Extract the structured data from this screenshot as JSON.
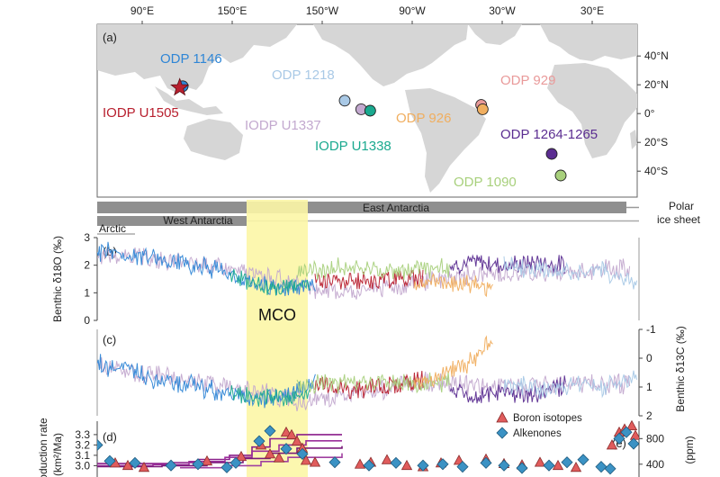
{
  "map": {
    "panel_label": "(a)",
    "lon_ticks": [
      "90°E",
      "150°E",
      "150°W",
      "90°W",
      "30°W",
      "30°E"
    ],
    "lat_ticks": [
      "40°N",
      "20°N",
      "0°",
      "20°S",
      "40°S"
    ],
    "sites": [
      {
        "label": "ODP 1146",
        "color": "#2f86d6",
        "marker": "circle",
        "lon": 117,
        "lat": 19
      },
      {
        "label": "IODP U1505",
        "color": "#b8202f",
        "marker": "star",
        "lon": 115,
        "lat": 18
      },
      {
        "label": "ODP 1218",
        "color": "#a9c9e6",
        "marker": "circle",
        "lon": -135,
        "lat": 9
      },
      {
        "label": "IODP U1337",
        "color": "#c3a9cf",
        "marker": "circle",
        "lon": -124,
        "lat": 3
      },
      {
        "label": "IODP U1338",
        "color": "#1aa98f",
        "marker": "circle",
        "lon": -118,
        "lat": 2
      },
      {
        "label": "ODP 929",
        "color": "#e99a9a",
        "marker": "circle",
        "lon": -44,
        "lat": 6
      },
      {
        "label": "ODP 926",
        "color": "#f0ae5f",
        "marker": "circle",
        "lon": -43,
        "lat": 3
      },
      {
        "label": "ODP 1264-1265",
        "color": "#5b2d91",
        "marker": "circle",
        "lon": 3,
        "lat": -28
      },
      {
        "label": "ODP 1090",
        "color": "#a8d07c",
        "marker": "circle",
        "lon": 9,
        "lat": -43
      }
    ]
  },
  "ice_sheet": {
    "bars": [
      "East Antarctia",
      "West Antarctia",
      "Arctic"
    ],
    "label_line1": "Polar",
    "label_line2": "ice sheet"
  },
  "mco_label": "MCO",
  "chart_data": [
    {
      "panel": "(b)",
      "type": "line",
      "ylabel": "Benthic δ18O (‰)",
      "ylim": [
        3,
        0
      ],
      "yticks": [
        0,
        1,
        2,
        3
      ],
      "y_axis": "left",
      "series": [
        {
          "site": "IODP U1337",
          "color": "#c3a9cf",
          "values": [
            2.4,
            2.3,
            2.1,
            1.9,
            1.7,
            1.2,
            1.0,
            1.2,
            1.4,
            1.6,
            1.7,
            1.7,
            1.8,
            1.9
          ]
        },
        {
          "site": "ODP 1146",
          "color": "#2f86d6",
          "values": [
            2.5,
            2.4,
            2.2,
            2.0,
            1.8,
            1.3,
            1.1,
            1.4
          ]
        },
        {
          "site": "IODP U1338",
          "color": "#1aa98f",
          "values": [
            1.6,
            1.3,
            1.1,
            1.3
          ]
        },
        {
          "site": "IODP U1505",
          "color": "#b8202f",
          "values": [
            1.5,
            1.4,
            1.5,
            1.6
          ]
        },
        {
          "site": "ODP 1090",
          "color": "#a8d07c",
          "values": [
            1.8,
            1.9,
            1.8,
            1.9
          ]
        },
        {
          "site": "ODP 926",
          "color": "#f0ae5f",
          "values": [
            1.3,
            1.4,
            1.3,
            1.2
          ]
        },
        {
          "site": "ODP 1264-1265",
          "color": "#5b2d91",
          "values": [
            2.0,
            2.1,
            2.0,
            2.1,
            2.0
          ]
        },
        {
          "site": "ODP 1218",
          "color": "#a9c9e6",
          "values": [
            2.0,
            1.9,
            1.8,
            1.7,
            1.9,
            1.6,
            1.3
          ]
        }
      ]
    },
    {
      "panel": "(c)",
      "type": "line",
      "ylabel": "Benthic δ13C (‰)",
      "ylim": [
        -1,
        2
      ],
      "yticks": [
        2,
        1,
        0,
        -1
      ],
      "y_axis": "right",
      "series": [
        {
          "site": "IODP U1337",
          "color": "#c3a9cf",
          "values": [
            0.3,
            0.5,
            0.7,
            0.9,
            1.2,
            1.5,
            1.3,
            1.1,
            0.8,
            0.9,
            1.0,
            0.9,
            0.9,
            0.9
          ]
        },
        {
          "site": "ODP 1146",
          "color": "#2f86d6",
          "values": [
            0.2,
            0.4,
            0.8,
            0.9,
            1.2,
            1.4,
            1.3,
            0.9
          ]
        },
        {
          "site": "IODP U1338",
          "color": "#1aa98f",
          "values": [
            1.1,
            1.4,
            1.3,
            1.2
          ]
        },
        {
          "site": "IODP U1505",
          "color": "#b8202f",
          "values": [
            0.9,
            1.1,
            1.0,
            0.8
          ]
        },
        {
          "site": "ODP 1090",
          "color": "#a8d07c",
          "values": [
            1.0,
            0.8,
            0.9,
            0.8
          ]
        },
        {
          "site": "ODP 926",
          "color": "#f0ae5f",
          "values": [
            0.9,
            0.6,
            0.2,
            -0.6
          ]
        },
        {
          "site": "ODP 1264-1265",
          "color": "#5b2d91",
          "values": [
            1.2,
            1.3,
            1.2,
            1.3,
            0.9
          ]
        },
        {
          "site": "ODP 1218",
          "color": "#a9c9e6",
          "values": [
            0.9,
            1.0,
            1.1,
            0.9,
            1.0,
            0.9,
            0.6
          ]
        }
      ]
    },
    {
      "panel": "(d)",
      "type": "line",
      "ylabel_line1": "Production rate",
      "ylabel_line2": "(km²/Ma)",
      "yticks": [
        "3.3",
        "3.2",
        "3.1",
        "3.0"
      ],
      "ylim": [
        2.96,
        3.36
      ]
    },
    {
      "panel": "(e)",
      "type": "scatter",
      "ylabel": "(ppm)",
      "yticks": [
        "800",
        "400"
      ],
      "ylim": [
        200,
        1100
      ],
      "series": [
        {
          "name": "Boron isotopes",
          "color": "#e05c5c",
          "marker": "triangle",
          "values": [
            420,
            380,
            350,
            450,
            520,
            700,
            900,
            860,
            760,
            650,
            560,
            500,
            460,
            430,
            400,
            430,
            470,
            380,
            360,
            420,
            460,
            480,
            410,
            390,
            430,
            380,
            350,
            700,
            900,
            950,
            1000,
            850
          ]
        },
        {
          "name": "Alkenones",
          "color": "#3b92c4",
          "marker": "diamond",
          "values": [
            700,
            450,
            420,
            380,
            400,
            350,
            420,
            760,
            920,
            640,
            560,
            430,
            380,
            420,
            380,
            400,
            360,
            420,
            380,
            340,
            380,
            430,
            470,
            360,
            330,
            800,
            900,
            720
          ]
        }
      ]
    }
  ]
}
